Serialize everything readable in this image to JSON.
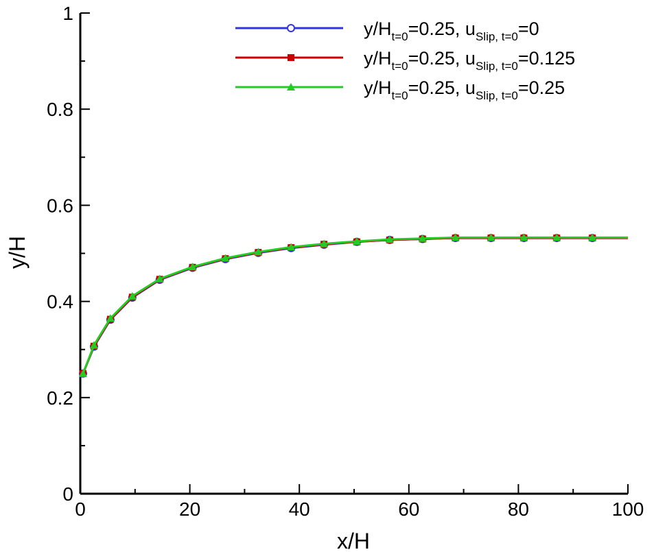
{
  "chart_data": {
    "type": "line",
    "xlabel": "x/H",
    "ylabel": "y/H",
    "xlim": [
      0,
      100
    ],
    "ylim": [
      0,
      1
    ],
    "xticks": [
      0,
      20,
      40,
      60,
      80,
      100
    ],
    "xtick_labels": [
      "0",
      "20",
      "40",
      "60",
      "80",
      "100"
    ],
    "yticks": [
      0,
      0.2,
      0.4,
      0.6,
      0.8,
      1
    ],
    "ytick_labels": [
      "0",
      "0.2",
      "0.4",
      "0.6",
      "0.8",
      "1"
    ],
    "grid": false,
    "legend_position": "top-right",
    "x": [
      0.5,
      2.5,
      5.5,
      9.5,
      14.5,
      20.5,
      26.5,
      32.5,
      38.5,
      44.5,
      50.5,
      56.5,
      62.5,
      68.5,
      75,
      81,
      87,
      93.5,
      100
    ],
    "series": [
      {
        "legend": {
          "base": "y/H",
          "sub1": "t=0",
          "mid": "=0.25, u",
          "sub2": "Slip, t=0",
          "tail": "=0"
        },
        "color": "#3333dd",
        "marker": "open-circle",
        "values": [
          0.25,
          0.306,
          0.362,
          0.408,
          0.445,
          0.47,
          0.488,
          0.501,
          0.511,
          0.518,
          0.524,
          0.528,
          0.53,
          0.532,
          0.532,
          0.532,
          0.532,
          0.532,
          0.532
        ]
      },
      {
        "legend": {
          "base": "y/H",
          "sub1": "t=0",
          "mid": "=0.25, u",
          "sub2": "Slip, t=0",
          "tail": "=0.125"
        },
        "color": "#cc0000",
        "marker": "filled-square",
        "values": [
          0.25,
          0.307,
          0.363,
          0.409,
          0.446,
          0.471,
          0.489,
          0.502,
          0.512,
          0.519,
          0.524,
          0.528,
          0.53,
          0.532,
          0.532,
          0.532,
          0.532,
          0.532,
          0.532
        ]
      },
      {
        "legend": {
          "base": "y/H",
          "sub1": "t=0",
          "mid": "=0.25, u",
          "sub2": "Slip, t=0",
          "tail": "=0.25"
        },
        "color": "#22cc22",
        "marker": "filled-triangle",
        "values": [
          0.25,
          0.309,
          0.365,
          0.411,
          0.447,
          0.472,
          0.49,
          0.503,
          0.513,
          0.52,
          0.525,
          0.529,
          0.531,
          0.533,
          0.533,
          0.533,
          0.533,
          0.533,
          0.533
        ]
      }
    ],
    "marker_indices": [
      0,
      1,
      2,
      3,
      4,
      5,
      6,
      7,
      8,
      9,
      10,
      11,
      12,
      13,
      14,
      15,
      16,
      17
    ]
  }
}
